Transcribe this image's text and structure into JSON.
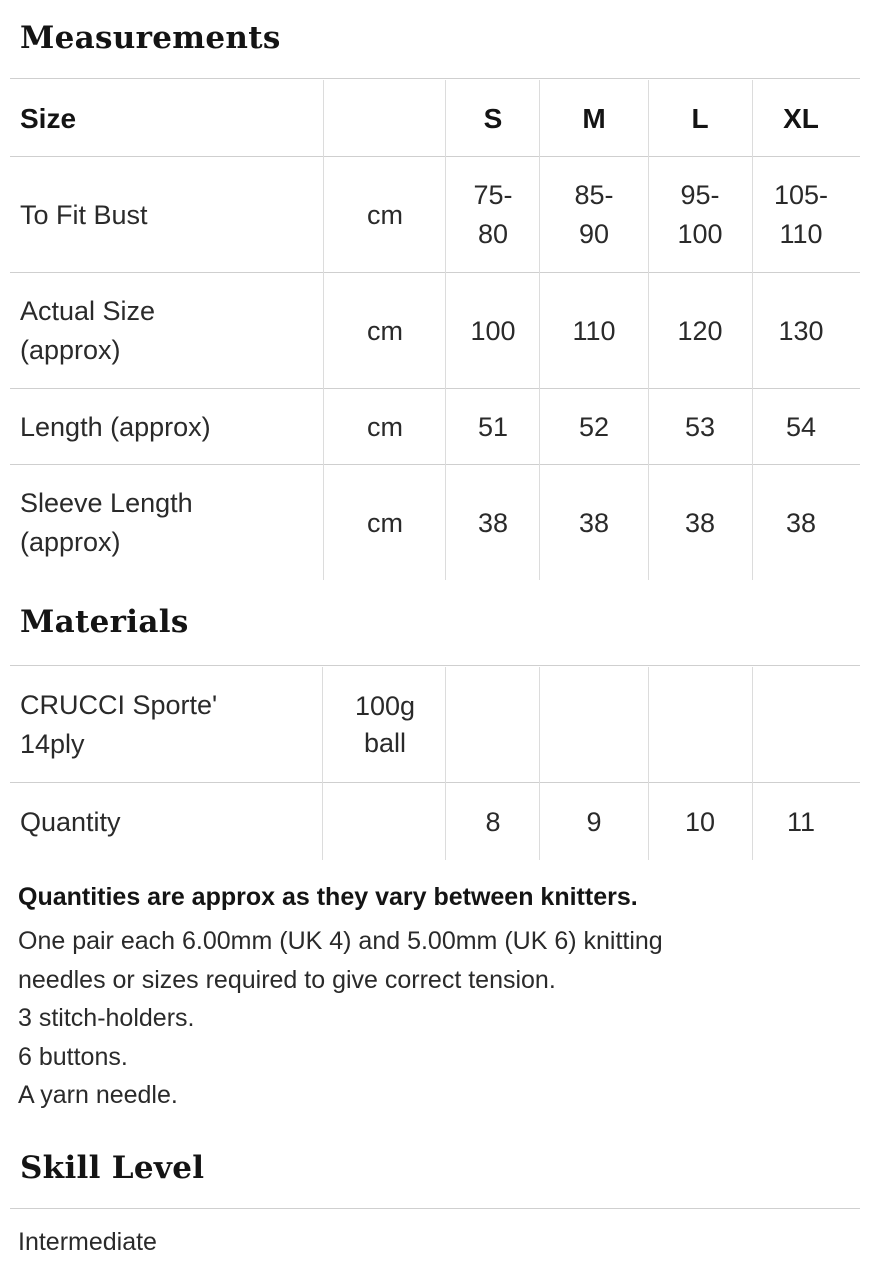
{
  "measurements": {
    "title": "Measurements",
    "header": {
      "label": "Size",
      "unit": "",
      "sizes": [
        "S",
        "M",
        "L",
        "XL"
      ]
    },
    "rows": [
      {
        "label": "To Fit Bust",
        "unit": "cm",
        "values": [
          "75-\n80",
          "85-\n90",
          "95-\n100",
          "105-\n110"
        ]
      },
      {
        "label": "Actual Size\n(approx)",
        "unit": "cm",
        "values": [
          "100",
          "110",
          "120",
          "130"
        ]
      },
      {
        "label": "Length (approx)",
        "unit": "cm",
        "values": [
          "51",
          "52",
          "53",
          "54"
        ]
      },
      {
        "label": "Sleeve Length\n(approx)",
        "unit": "cm",
        "values": [
          "38",
          "38",
          "38",
          "38"
        ]
      }
    ]
  },
  "materials": {
    "title": "Materials",
    "rows": [
      {
        "label": "CRUCCI Sporte'\n14ply",
        "unit": "100g\nball",
        "values": [
          "",
          "",
          "",
          ""
        ]
      },
      {
        "label": "Quantity",
        "unit": "",
        "values": [
          "8",
          "9",
          "10",
          "11"
        ]
      }
    ],
    "note_bold": "Quantities are approx as they vary between knitters.",
    "note_lines": [
      "One pair each 6.00mm (UK 4) and 5.00mm (UK 6) knitting",
      "needles or sizes required to give correct tension.",
      "3 stitch-holders.",
      "6 buttons.",
      "A yarn needle."
    ]
  },
  "skill": {
    "title": "Skill Level",
    "value": "Intermediate"
  }
}
